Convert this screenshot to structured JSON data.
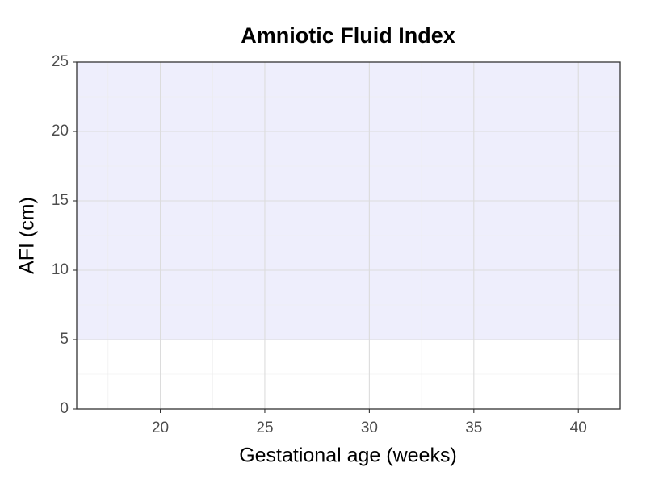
{
  "chart_data": {
    "type": "line",
    "title": "Amniotic Fluid Index",
    "x_label": "Gestational age (weeks)",
    "y_label": "AFI (cm)",
    "series": [],
    "band": {
      "ymin": 5,
      "ymax": 25,
      "color": "#eeeefc"
    },
    "xlim": [
      16,
      42
    ],
    "xticks": [
      20,
      25,
      30,
      35,
      40
    ],
    "xminor": [
      17.5,
      22.5,
      27.5,
      32.5,
      37.5
    ],
    "ylim": [
      0,
      25
    ],
    "yticks": [
      0,
      5,
      10,
      15,
      20,
      25
    ],
    "yminor": [
      2.5,
      7.5,
      12.5,
      17.5,
      22.5
    ],
    "grid": true
  }
}
